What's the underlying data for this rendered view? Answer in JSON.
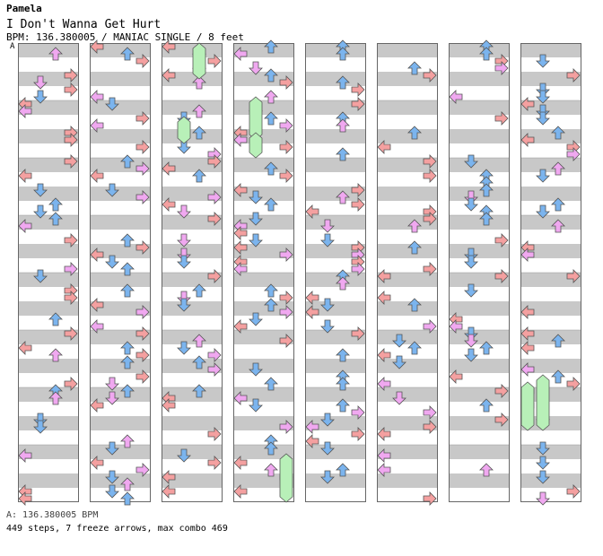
{
  "chart_header": {
    "artist": "Pamela",
    "title": "I Don't Wanna Get Hurt",
    "info": "BPM: 136.380005 / MANIAC SINGLE / 8 feet",
    "bpm_marker": "A"
  },
  "footer": {
    "bpm_line": "A: 136.380005 BPM",
    "stats_line": "449 steps, 7 freeze arrows, max combo 469"
  },
  "colors": {
    "left_right_arrow": "#f4a0a0",
    "down_up_arrow": "#7bb4ee",
    "eighth_note": "#f0a8f0",
    "freeze": "#b8f0b8",
    "band": "#c8c8c8",
    "outline": "#555555"
  },
  "chart_data": {
    "type": "step_chart",
    "columns": 8,
    "measures_per_column": 8,
    "lanes": [
      "left",
      "down",
      "up",
      "right"
    ],
    "freeze_arrows": 7
  }
}
